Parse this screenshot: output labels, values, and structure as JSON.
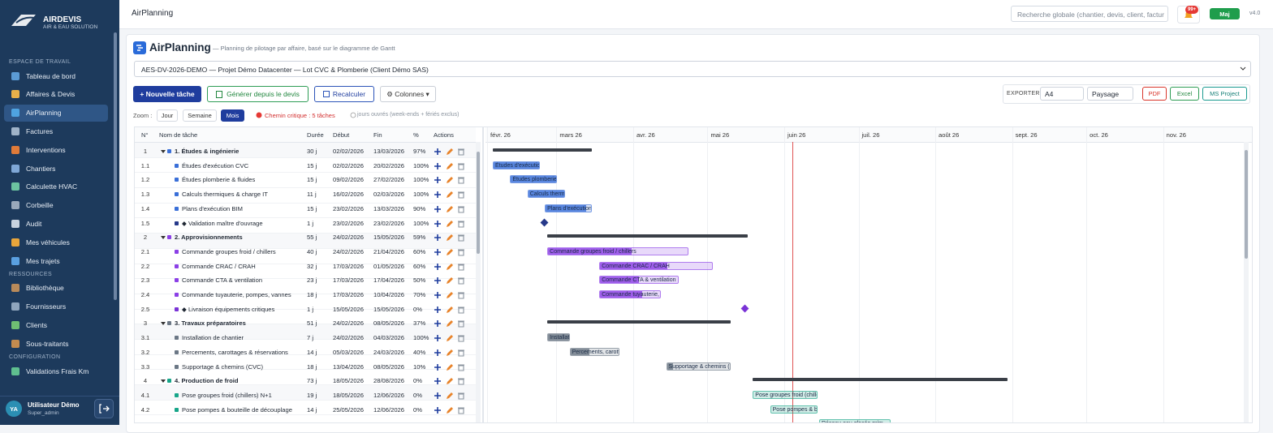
{
  "sidebar": {
    "brand": "AIRDEVIS",
    "tagline": "AIR & EAU SOLUTION",
    "sections": [
      {
        "title": "ESPACE DE TRAVAIL",
        "items": [
          "Tableau de bord",
          "Affaires & Devis",
          "AirPlanning",
          "Factures",
          "Interventions",
          "Chantiers",
          "Calculette HVAC",
          "Corbeille",
          "Audit",
          "Mes véhicules",
          "Mes trajets"
        ]
      },
      {
        "title": "RESSOURCES",
        "items": [
          "Bibliothèque",
          "Fournisseurs",
          "Clients",
          "Sous-traitants"
        ]
      },
      {
        "title": "CONFIGURATION",
        "items": [
          "Validations Frais Km"
        ]
      }
    ],
    "user": {
      "initials": "YA",
      "name": "Utilisateur Démo",
      "role": "Super_admin"
    }
  },
  "topbar": {
    "title": "AirPlanning",
    "search_placeholder": "Recherche globale (chantier, devis, client, factur",
    "notifications": "99+",
    "update_button": "Maj",
    "version": "v4.0"
  },
  "header": {
    "title": "AirPlanning",
    "subtitle": "— Planning de pilotage par affaire, basé sur le diagramme de Gantt"
  },
  "project_select": "AES-DV-2026-DEMO — Projet Démo Datacenter — Lot CVC & Plomberie (Client Démo SAS)",
  "toolbar": {
    "new_task": "+ Nouvelle tâche",
    "generate": "Générer depuis le devis",
    "recalc": "Recalculer",
    "columns": "⚙ Colonnes ▾",
    "export": {
      "label": "EXPORTER",
      "format": "A4",
      "orientation": "Paysage",
      "pdf": "PDF",
      "excel": "Excel",
      "msproject": "MS Project"
    }
  },
  "zoom": {
    "label": "Zoom :",
    "options": [
      "Jour",
      "Semaine",
      "Mois"
    ],
    "critical_path": "Chemin critique : 5 tâches",
    "note": "jours ouvrés (week-ends + fériés exclus)"
  },
  "table": {
    "columns": [
      "N°",
      "Nom de tâche",
      "Durée",
      "Début",
      "Fin",
      "%",
      "Actions"
    ],
    "rows": [
      {
        "num": "1",
        "name": "1. Études & ingénierie",
        "duration": "30 j",
        "start": "02/02/2026",
        "end": "13/03/2026",
        "pct": "97%",
        "group": true,
        "color": "#3a6fd8"
      },
      {
        "num": "1.1",
        "name": "Études d'exécution CVC",
        "duration": "15 j",
        "start": "02/02/2026",
        "end": "20/02/2026",
        "pct": "100%",
        "color": "#3a6fd8"
      },
      {
        "num": "1.2",
        "name": "Études plomberie & fluides",
        "duration": "15 j",
        "start": "09/02/2026",
        "end": "27/02/2026",
        "pct": "100%",
        "color": "#3a6fd8"
      },
      {
        "num": "1.3",
        "name": "Calculs thermiques & charge IT",
        "duration": "11 j",
        "start": "16/02/2026",
        "end": "02/03/2026",
        "pct": "100%",
        "color": "#3a6fd8"
      },
      {
        "num": "1.4",
        "name": "Plans d'exécution BIM",
        "duration": "15 j",
        "start": "23/02/2026",
        "end": "13/03/2026",
        "pct": "90%",
        "color": "#3a6fd8"
      },
      {
        "num": "1.5",
        "name": "◆ Validation maître d'ouvrage",
        "duration": "1 j",
        "start": "23/02/2026",
        "end": "23/02/2026",
        "pct": "100%",
        "milestone": true,
        "color": "#26398a"
      },
      {
        "num": "2",
        "name": "2. Approvisionnements",
        "duration": "55 j",
        "start": "24/02/2026",
        "end": "15/05/2026",
        "pct": "59%",
        "group": true,
        "color": "#8b3fe6"
      },
      {
        "num": "2.1",
        "name": "Commande groupes froid / chillers",
        "duration": "40 j",
        "start": "24/02/2026",
        "end": "21/04/2026",
        "pct": "60%",
        "color": "#8b3fe6"
      },
      {
        "num": "2.2",
        "name": "Commande CRAC / CRAH",
        "duration": "32 j",
        "start": "17/03/2026",
        "end": "01/05/2026",
        "pct": "60%",
        "color": "#8b3fe6"
      },
      {
        "num": "2.3",
        "name": "Commande CTA & ventilation",
        "duration": "23 j",
        "start": "17/03/2026",
        "end": "17/04/2026",
        "pct": "50%",
        "color": "#8b3fe6"
      },
      {
        "num": "2.4",
        "name": "Commande tuyauterie, pompes, vannes",
        "duration": "18 j",
        "start": "17/03/2026",
        "end": "10/04/2026",
        "pct": "70%",
        "color": "#8b3fe6"
      },
      {
        "num": "2.5",
        "name": "◆ Livraison équipements critiques",
        "duration": "1 j",
        "start": "15/05/2026",
        "end": "15/05/2026",
        "pct": "0%",
        "milestone": true,
        "color": "#7a33d6"
      },
      {
        "num": "3",
        "name": "3. Travaux préparatoires",
        "duration": "51 j",
        "start": "24/02/2026",
        "end": "08/05/2026",
        "pct": "37%",
        "group": true,
        "color": "#6b7785"
      },
      {
        "num": "3.1",
        "name": "Installation de chantier",
        "duration": "7 j",
        "start": "24/02/2026",
        "end": "04/03/2026",
        "pct": "100%",
        "color": "#6b7785"
      },
      {
        "num": "3.2",
        "name": "Percements, carottages & réservations",
        "duration": "14 j",
        "start": "05/03/2026",
        "end": "24/03/2026",
        "pct": "40%",
        "color": "#6b7785"
      },
      {
        "num": "3.3",
        "name": "Supportage & chemins (CVC)",
        "duration": "18 j",
        "start": "13/04/2026",
        "end": "08/05/2026",
        "pct": "10%",
        "color": "#6b7785"
      },
      {
        "num": "4",
        "name": "4. Production de froid",
        "duration": "73 j",
        "start": "18/05/2026",
        "end": "28/08/2026",
        "pct": "0%",
        "group": true,
        "color": "#17a589"
      },
      {
        "num": "4.1",
        "name": "Pose groupes froid (chillers) N+1",
        "duration": "19 j",
        "start": "18/05/2026",
        "end": "12/06/2026",
        "pct": "0%",
        "color": "#17a589"
      },
      {
        "num": "4.2",
        "name": "Pose pompes & bouteille de découplage",
        "duration": "14 j",
        "start": "25/05/2026",
        "end": "12/06/2026",
        "pct": "0%",
        "color": "#17a589"
      }
    ]
  },
  "gantt": {
    "months": [
      "févr. 26",
      "mars 26",
      "avr. 26",
      "mai 26",
      "juin 26",
      "juil. 26",
      "août 26",
      "sept. 26",
      "oct. 26",
      "nov. 26"
    ],
    "partial_bar": {
      "label": "Réseau eau glacée prim",
      "color": "#17a589"
    }
  }
}
